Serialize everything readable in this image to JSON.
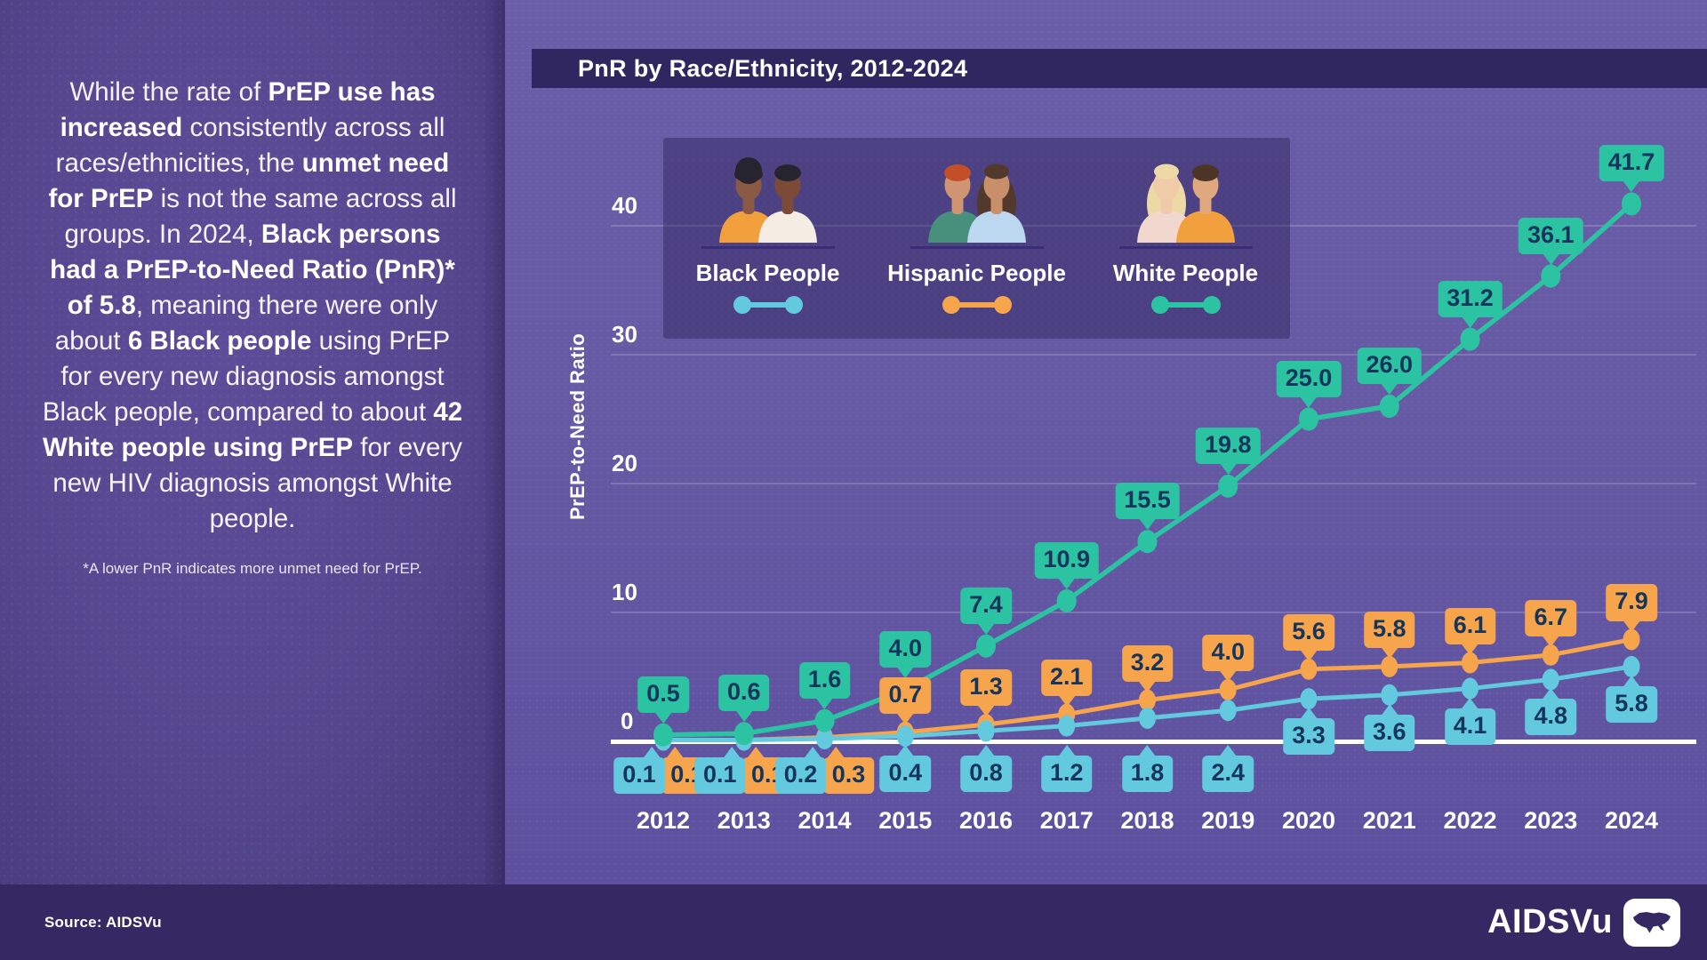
{
  "left_panel": {
    "paragraph_segments": [
      {
        "t": "While the rate of ",
        "b": 0
      },
      {
        "t": "PrEP use has increased",
        "b": 1
      },
      {
        "t": " consistently across all races/ethnicities, the ",
        "b": 0
      },
      {
        "t": "unmet need for PrEP",
        "b": 1
      },
      {
        "t": " is not the same across all groups. In 2024, ",
        "b": 0
      },
      {
        "t": "Black persons had a PrEP-to-Need Ratio (PnR)* of 5.8",
        "b": 1
      },
      {
        "t": ", meaning there were only about ",
        "b": 0
      },
      {
        "t": "6 Black people",
        "b": 1
      },
      {
        "t": " using PrEP for every new diagnosis amongst Black people, compared to about ",
        "b": 0
      },
      {
        "t": "42 White people using PrEP",
        "b": 1
      },
      {
        "t": " for every new HIV diagnosis amongst White people.",
        "b": 0
      }
    ],
    "footnote": "*A lower PnR indicates more unmet need for PrEP."
  },
  "chart": {
    "title": "PnR by Race/Ethnicity, 2012-2024",
    "y_axis_label": "PrEP-to-Need Ratio"
  },
  "legend": {
    "items": [
      {
        "label": "Black People",
        "color": "#63c9de",
        "people": {
          "skin_a": "#8a5a44",
          "hair_a": "#26242e",
          "shirt_a": "#f2a03d",
          "style_a": "afro",
          "skin_b": "#7c4b37",
          "hair_b": "#26242e",
          "shirt_b": "#f5ece4",
          "style_b": "short"
        }
      },
      {
        "label": "Hispanic People",
        "color": "#f7a54c",
        "people": {
          "skin_a": "#cf9472",
          "hair_a": "#c24f28",
          "shirt_a": "#47917c",
          "style_a": "short",
          "skin_b": "#c98e6a",
          "hair_b": "#53392b",
          "shirt_b": "#bcd7f0",
          "style_b": "long"
        }
      },
      {
        "label": "White People",
        "color": "#2cc3a3",
        "people": {
          "skin_a": "#f0cbaa",
          "hair_a": "#ecd9a6",
          "shirt_a": "#f2d7ce",
          "style_a": "long",
          "skin_b": "#e0a87e",
          "hair_b": "#4d3526",
          "shirt_b": "#f2a03d",
          "style_b": "short"
        }
      }
    ]
  },
  "footer": {
    "source": "Source: AIDSVu",
    "logo_text": "AIDSVu"
  },
  "colors": {
    "black_series": "#63c9de",
    "hispanic_series": "#f7a54c",
    "white_series": "#2cc3a3",
    "callout_text": "#16355d",
    "baseline": "#ffffff"
  },
  "chart_data": {
    "type": "line",
    "title": "PnR by Race/Ethnicity, 2012-2024",
    "xlabel": "",
    "ylabel": "PrEP-to-Need Ratio",
    "x": [
      2012,
      2013,
      2014,
      2015,
      2016,
      2017,
      2018,
      2019,
      2020,
      2021,
      2022,
      2023,
      2024
    ],
    "yticks": [
      0,
      10,
      20,
      30,
      40
    ],
    "ylim": [
      0,
      45
    ],
    "grid": true,
    "legend_position": "top-left-inside",
    "series": [
      {
        "name": "Black People",
        "color": "#63c9de",
        "values": [
          0.1,
          0.1,
          0.2,
          0.4,
          0.8,
          1.2,
          1.8,
          2.4,
          3.3,
          3.6,
          4.1,
          4.8,
          5.8
        ]
      },
      {
        "name": "Hispanic People",
        "color": "#f7a54c",
        "values": [
          0.1,
          0.1,
          0.3,
          0.7,
          1.3,
          2.1,
          3.2,
          4.0,
          5.6,
          5.8,
          6.1,
          6.7,
          7.9
        ]
      },
      {
        "name": "White People",
        "color": "#2cc3a3",
        "values": [
          0.5,
          0.6,
          1.6,
          4.0,
          7.4,
          10.9,
          15.5,
          19.8,
          25.0,
          26.0,
          31.2,
          36.1,
          41.7
        ]
      }
    ]
  }
}
